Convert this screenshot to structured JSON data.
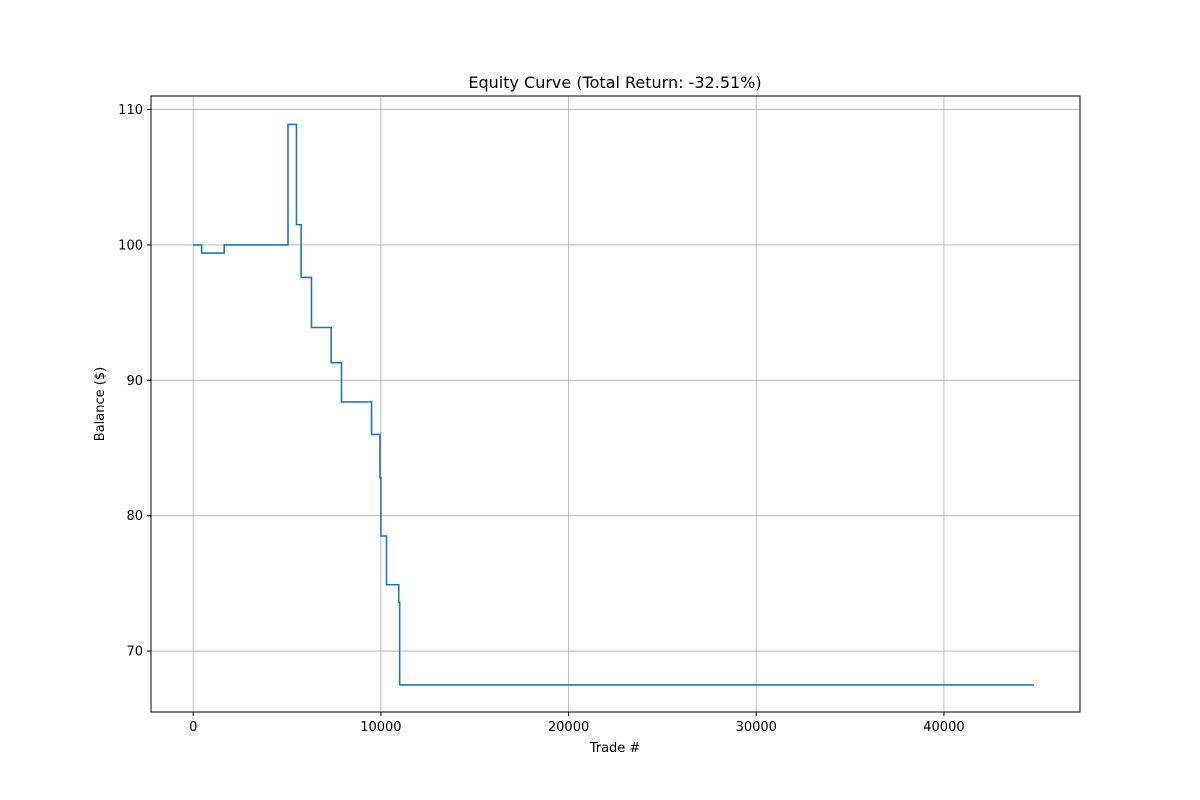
{
  "chart_data": {
    "type": "line",
    "title": "Equity Curve (Total Return: -32.51%)",
    "xlabel": "Trade #",
    "ylabel": "Balance ($)",
    "xlim": [
      -2250,
      47250
    ],
    "ylim": [
      65.5,
      111
    ],
    "xticks": [
      0,
      10000,
      20000,
      30000,
      40000
    ],
    "yticks": [
      70,
      80,
      90,
      100,
      110
    ],
    "grid": true,
    "step": true,
    "series": [
      {
        "color": "#1f77b4",
        "points": [
          [
            0,
            100.0
          ],
          [
            450,
            100.0
          ],
          [
            450,
            99.4
          ],
          [
            1650,
            99.4
          ],
          [
            1650,
            100.0
          ],
          [
            5050,
            100.0
          ],
          [
            5050,
            108.9
          ],
          [
            5500,
            108.9
          ],
          [
            5500,
            101.5
          ],
          [
            5750,
            101.5
          ],
          [
            5750,
            97.6
          ],
          [
            6300,
            97.6
          ],
          [
            6300,
            93.9
          ],
          [
            7350,
            93.9
          ],
          [
            7350,
            91.3
          ],
          [
            7900,
            91.3
          ],
          [
            7900,
            88.4
          ],
          [
            9500,
            88.4
          ],
          [
            9500,
            86.0
          ],
          [
            9950,
            86.0
          ],
          [
            9950,
            82.8
          ],
          [
            10000,
            82.8
          ],
          [
            10000,
            78.5
          ],
          [
            10300,
            78.5
          ],
          [
            10300,
            74.9
          ],
          [
            10950,
            74.9
          ],
          [
            10950,
            73.6
          ],
          [
            11000,
            73.6
          ],
          [
            11000,
            67.5
          ],
          [
            44800,
            67.5
          ]
        ]
      }
    ]
  }
}
